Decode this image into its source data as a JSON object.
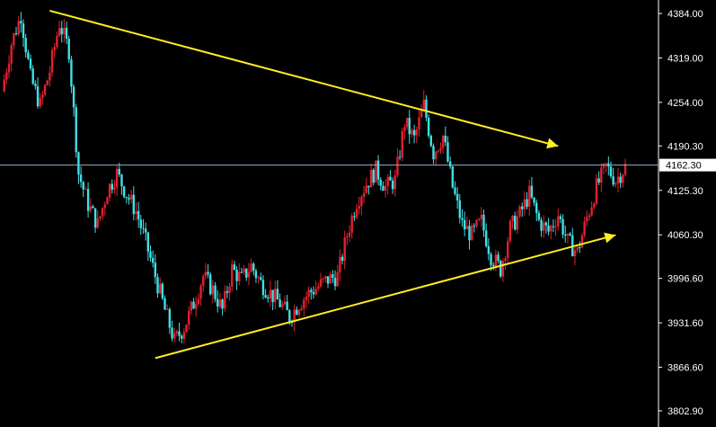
{
  "chart_data": {
    "type": "candlestick",
    "title": "",
    "xlabel": "",
    "ylabel": "",
    "ylim": [
      3780,
      4400
    ],
    "y_ticks": [
      "4384.00",
      "4319.00",
      "4254.00",
      "4190.30",
      "4125.30",
      "4060.30",
      "3996.60",
      "3931.60",
      "3866.60",
      "3802.90"
    ],
    "current_price": "4162.30",
    "colors": {
      "up": "#e0212f",
      "down": "#3fe0e6",
      "background": "#000000",
      "trendline": "#ffee22",
      "axis": "#ffffff",
      "price_line": "#8fb0cc"
    },
    "close_path": [
      4270,
      4340,
      4382,
      4290,
      4250,
      4300,
      4370,
      4330,
      4150,
      4105,
      4075,
      4125,
      4150,
      4120,
      4095,
      4050,
      4000,
      3950,
      3905,
      3925,
      3960,
      4000,
      3980,
      3950,
      4010,
      3995,
      4015,
      3990,
      3975,
      3960,
      3940,
      3960,
      3975,
      3985,
      3995,
      4000,
      4060,
      4110,
      4135,
      4155,
      4130,
      4140,
      4225,
      4200,
      4250,
      4180,
      4205,
      4130,
      4075,
      4060,
      4080,
      4030,
      4010,
      4070,
      4090,
      4120,
      4080,
      4065,
      4090,
      4050,
      4035,
      4085,
      4130,
      4160,
      4140,
      4160
    ],
    "trendlines": [
      {
        "from": {
          "candle": 5,
          "price": 4388
        },
        "to": {
          "candle": 58,
          "price": 4190
        },
        "arrow": true
      },
      {
        "from": {
          "candle": 16,
          "price": 3880
        },
        "to": {
          "candle": 64,
          "price": 4060
        },
        "arrow": true
      }
    ]
  }
}
